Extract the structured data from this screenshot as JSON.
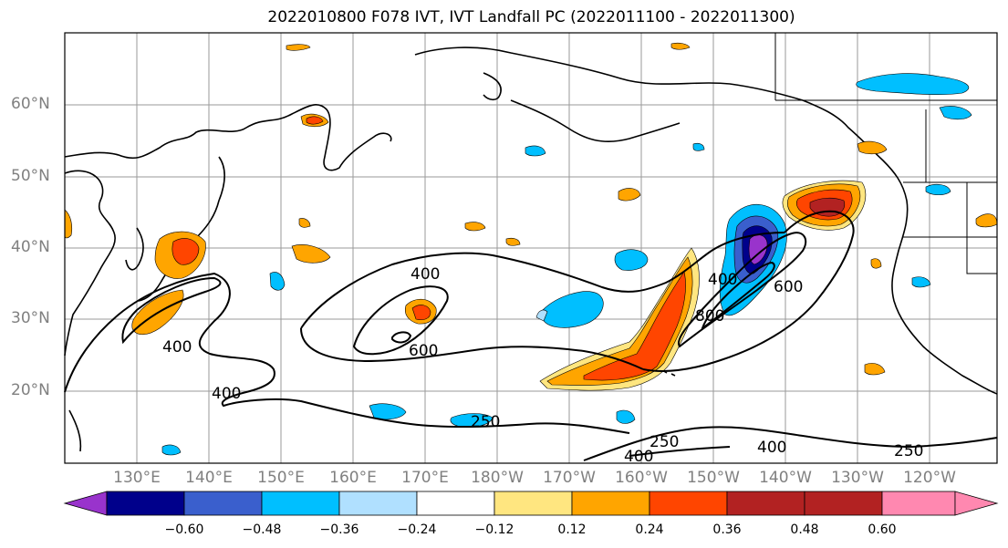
{
  "title": "2022010800 F078 IVT, IVT Landfall PC (2022011100 - 2022011300)",
  "lat_labels": [
    "60°N",
    "50°N",
    "40°N",
    "30°N",
    "20°N"
  ],
  "lon_labels": [
    "130°E",
    "140°E",
    "150°E",
    "160°E",
    "170°E",
    "180°W",
    "170°W",
    "160°W",
    "150°W",
    "140°W",
    "130°W",
    "120°W"
  ],
  "contour_labels": [
    "400",
    "400",
    "400",
    "600",
    "400",
    "600",
    "800",
    "250",
    "250",
    "400",
    "400",
    "250"
  ],
  "colorbar": {
    "ticks": [
      "−0.60",
      "−0.48",
      "−0.36",
      "−0.24",
      "−0.12",
      "0.12",
      "0.24",
      "0.36",
      "0.48",
      "0.60"
    ],
    "colors": [
      "#9933cc",
      "#00008b",
      "#3a5fcd",
      "#00bfff",
      "#b0e0ff",
      "#ffffff",
      "#ffe680",
      "#ffa500",
      "#ff4500",
      "#b22222",
      "#ff88b0"
    ]
  },
  "colors": {
    "neg_strong": "#9933cc",
    "neg_dark": "#00008b",
    "neg_mid": "#3a5fcd",
    "neg_light": "#00bfff",
    "neg_pale": "#b0e0ff",
    "pos_pale": "#ffe680",
    "pos_mid": "#ffa500",
    "pos_strong": "#ff4500",
    "pos_dark": "#b22222",
    "pos_max": "#ff88b0"
  }
}
